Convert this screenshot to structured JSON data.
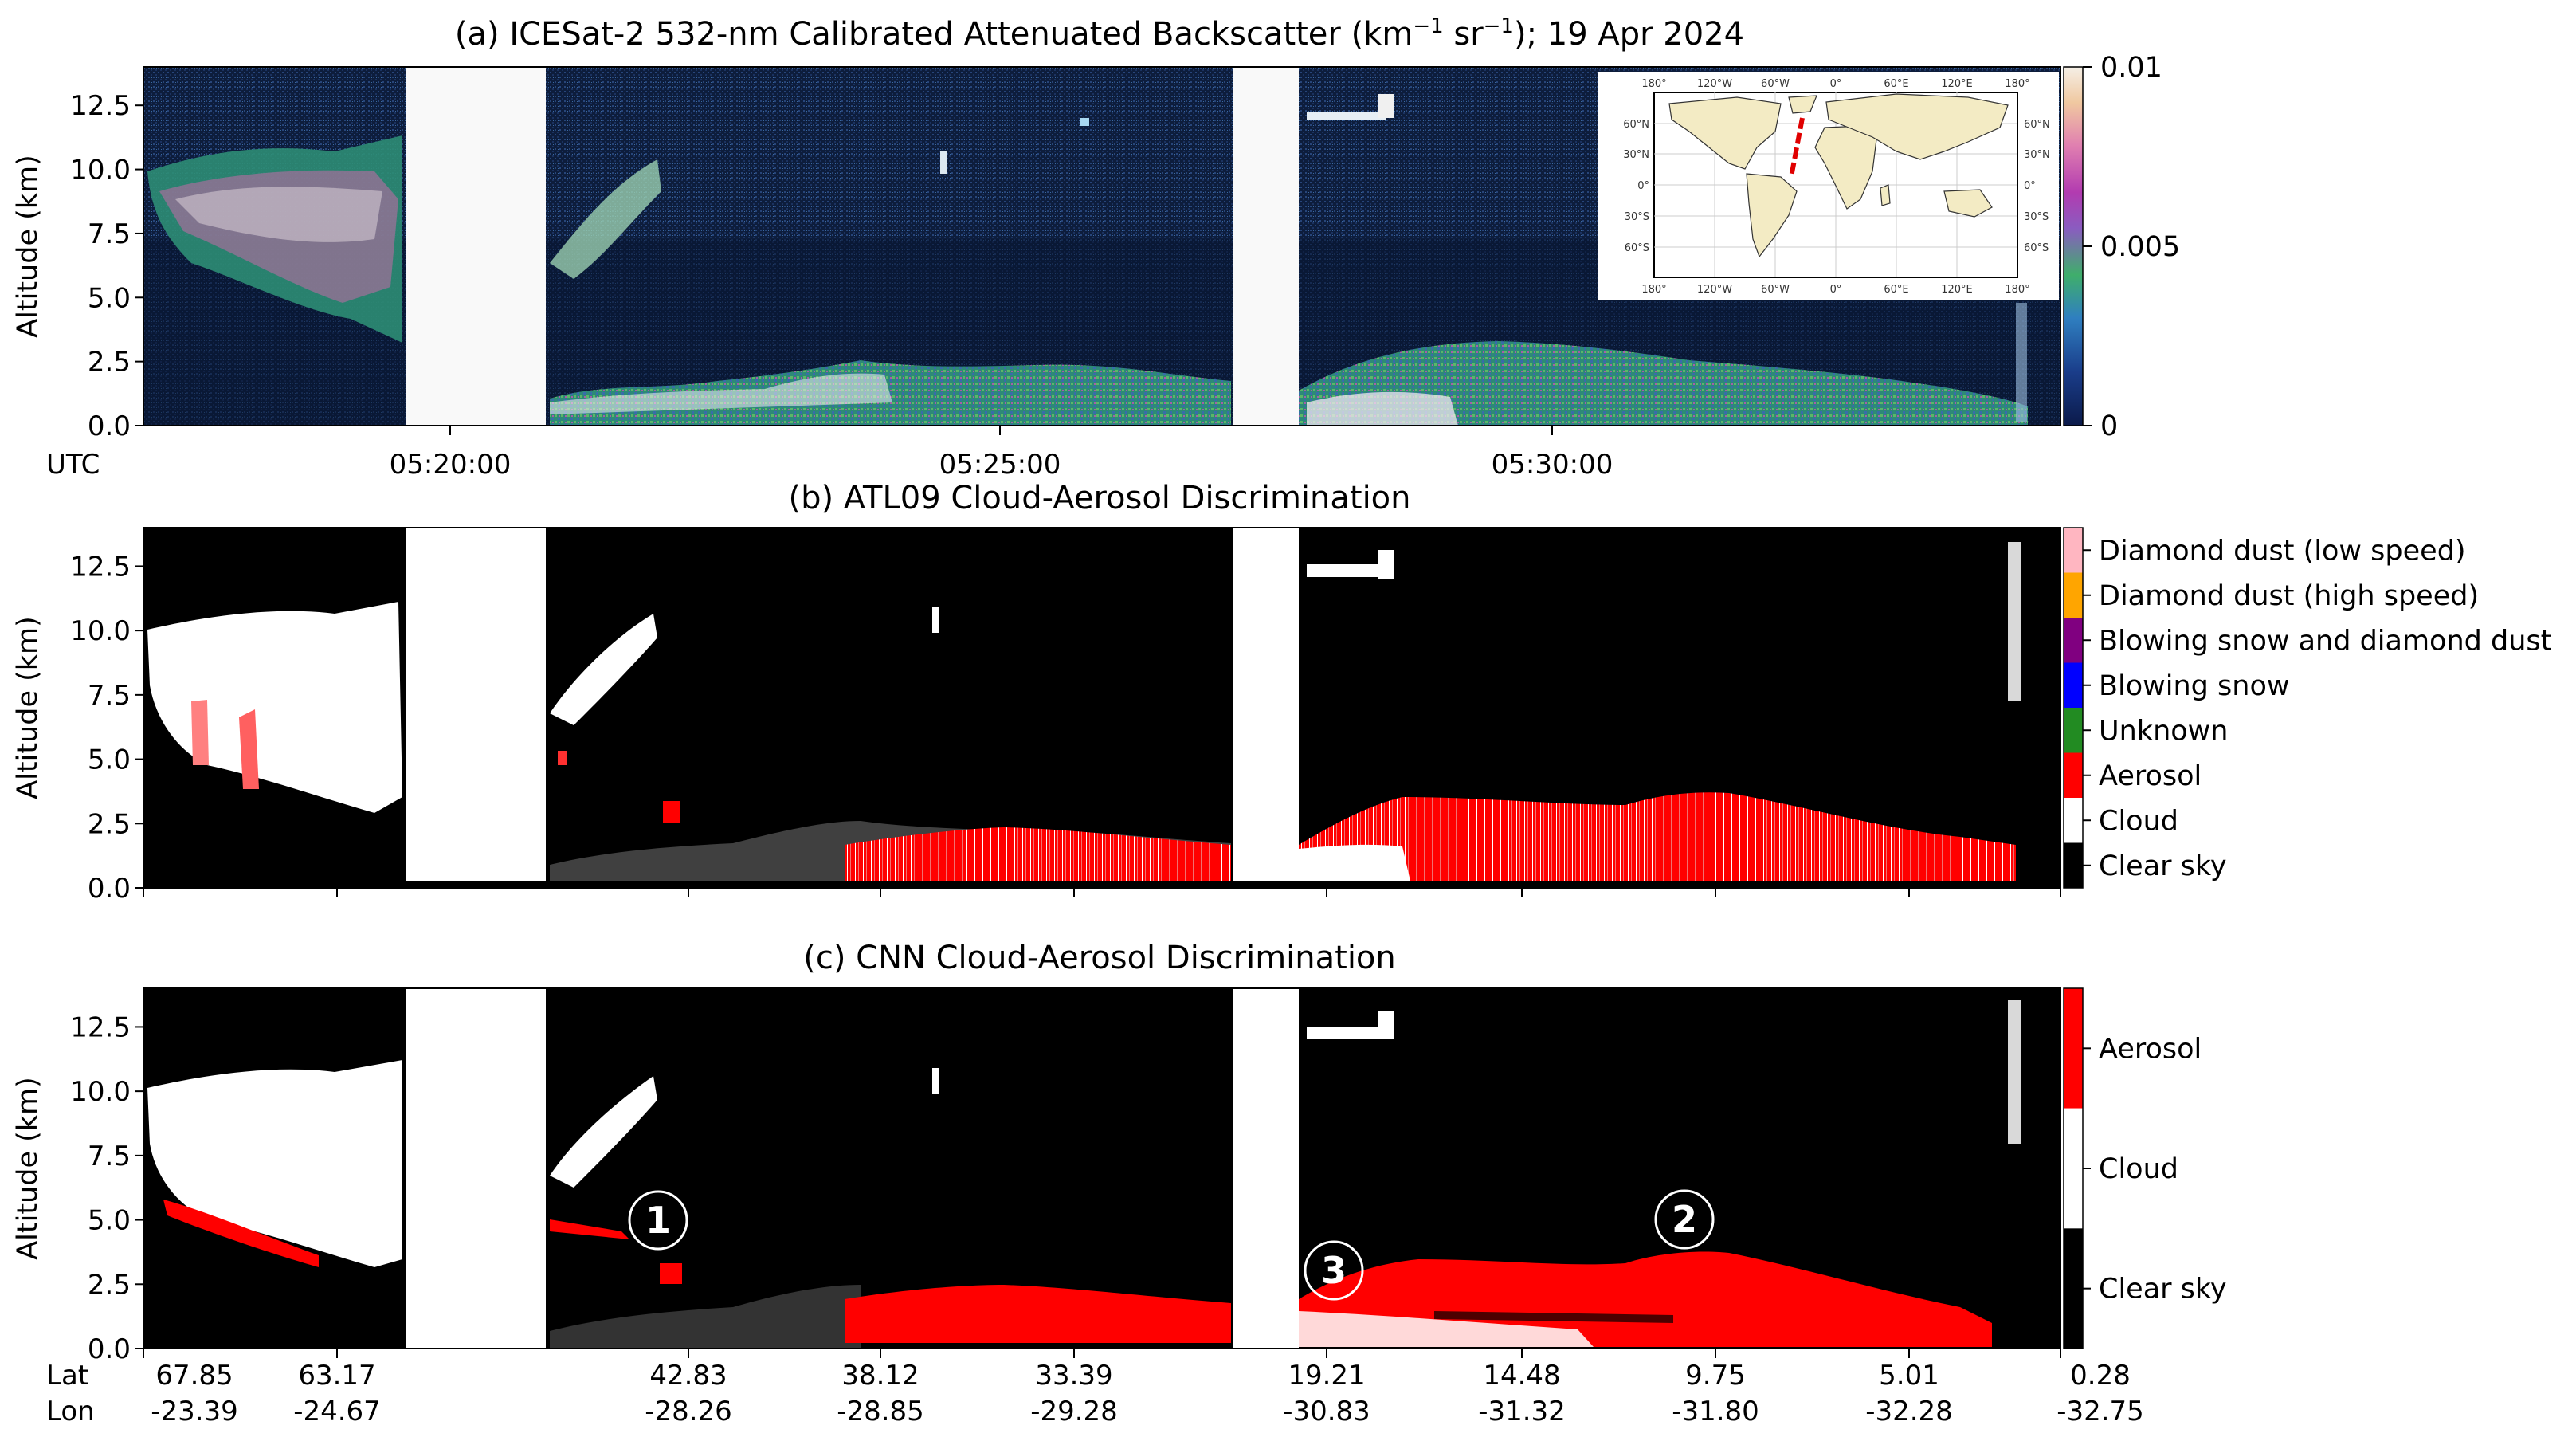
{
  "chart_data": [
    {
      "type": "heatmap",
      "panel": "a",
      "title": "(a) ICESat-2 532-nm Calibrated Attenuated Backscatter (km",
      "title_sup1": "−1",
      "title_mid": " sr",
      "title_sup2": "−1",
      "title_end": "); 19 Apr 2024",
      "ylabel": "Altitude (km)",
      "ylim": [
        0,
        14
      ],
      "yticks": [
        "0.0",
        "2.5",
        "5.0",
        "7.5",
        "10.0",
        "12.5"
      ],
      "x_axis_label": "UTC",
      "x_ticks": [
        "05:20:00",
        "05:25:00",
        "05:30:00"
      ],
      "colorbar": {
        "min": 0,
        "max": 0.01,
        "ticks": [
          "0",
          "0.005",
          "0.01"
        ]
      },
      "inset_map": {
        "lon_ticks": [
          "180°",
          "120°W",
          "60°W",
          "0°",
          "60°E",
          "120°E",
          "180°"
        ],
        "lat_ticks": [
          "60°N",
          "30°N",
          "0°",
          "30°S",
          "60°S"
        ],
        "track_color": "#e00000"
      }
    },
    {
      "type": "heatmap",
      "panel": "b",
      "title": "(b) ATL09 Cloud-Aerosol Discrimination",
      "ylabel": "Altitude (km)",
      "ylim": [
        0,
        14
      ],
      "yticks": [
        "0.0",
        "2.5",
        "5.0",
        "7.5",
        "10.0",
        "12.5"
      ],
      "classes": [
        {
          "name": "Diamond dust (low speed)",
          "color": "#ffb6c1"
        },
        {
          "name": "Diamond dust (high speed)",
          "color": "#ffa500"
        },
        {
          "name": "Blowing snow and diamond dust",
          "color": "#800080"
        },
        {
          "name": "Blowing snow",
          "color": "#0000ff"
        },
        {
          "name": "Unknown",
          "color": "#228b22"
        },
        {
          "name": "Aerosol",
          "color": "#ff0000"
        },
        {
          "name": "Cloud",
          "color": "#ffffff"
        },
        {
          "name": "Clear sky",
          "color": "#000000"
        }
      ]
    },
    {
      "type": "heatmap",
      "panel": "c",
      "title": "(c) CNN Cloud-Aerosol Discrimination",
      "ylabel": "Altitude (km)",
      "ylim": [
        0,
        14
      ],
      "yticks": [
        "0.0",
        "2.5",
        "5.0",
        "7.5",
        "10.0",
        "12.5"
      ],
      "classes": [
        {
          "name": "Aerosol",
          "color": "#ff0000"
        },
        {
          "name": "Cloud",
          "color": "#ffffff"
        },
        {
          "name": "Clear sky",
          "color": "#000000"
        }
      ],
      "annotations": [
        "1",
        "2",
        "3"
      ],
      "x_row_labels": [
        "Lat",
        "Lon"
      ],
      "lat_ticks": [
        "67.85",
        "63.17",
        "42.83",
        "38.12",
        "33.39",
        "19.21",
        "14.48",
        "9.75",
        "5.01",
        "0.28"
      ],
      "lon_ticks": [
        "-23.39",
        "-24.67",
        "-28.26",
        "-28.85",
        "-29.28",
        "-30.83",
        "-31.32",
        "-31.80",
        "-32.28",
        "-32.75"
      ]
    }
  ]
}
